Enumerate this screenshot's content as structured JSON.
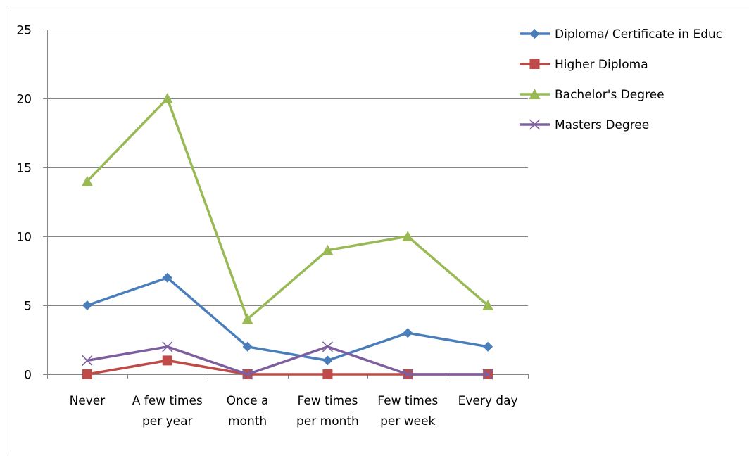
{
  "chart_data": {
    "type": "line",
    "title": "",
    "xlabel": "",
    "ylabel": "",
    "ylim": [
      0,
      25
    ],
    "yticks": [
      0,
      5,
      10,
      15,
      20,
      25
    ],
    "grid": true,
    "legend_position": "right",
    "categories": [
      [
        "Never"
      ],
      [
        "A few times",
        "per year"
      ],
      [
        "Once a",
        "month"
      ],
      [
        "Few times",
        "per month"
      ],
      [
        "Few times",
        "per week"
      ],
      [
        "Every day"
      ]
    ],
    "series": [
      {
        "name": "Diploma/ Certificate in Educ",
        "color": "#4a7ebb",
        "marker": "diamond",
        "values": [
          5,
          7,
          2,
          1,
          3,
          2
        ]
      },
      {
        "name": "Higher Diploma",
        "color": "#be4b48",
        "marker": "square",
        "values": [
          0,
          1,
          0,
          0,
          0,
          0
        ]
      },
      {
        "name": "Bachelor's Degree",
        "color": "#98b954",
        "marker": "triangle",
        "values": [
          14,
          20,
          4,
          9,
          10,
          5
        ]
      },
      {
        "name": "Masters Degree",
        "color": "#7d5fa0",
        "marker": "x",
        "values": [
          1,
          2,
          0,
          2,
          0,
          0
        ]
      }
    ]
  }
}
